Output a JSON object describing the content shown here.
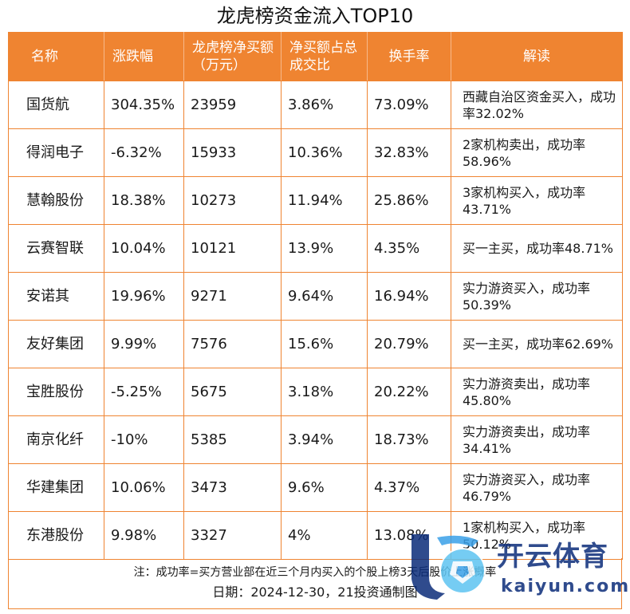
{
  "title": "龙虎榜资金流入TOP10",
  "table": {
    "headers": {
      "name": "名称",
      "change": "涨跌幅",
      "net_buy": "龙虎榜净买额（万元）",
      "share": "净买额占总成交比",
      "turnover": "换手率",
      "note": "解读"
    },
    "rows": [
      {
        "name": "国货航",
        "change": "304.35%",
        "net_buy": "23959",
        "share": "3.86%",
        "turnover": "73.09%",
        "note": "西藏自治区资金买入，成功率32.02%"
      },
      {
        "name": "得润电子",
        "change": "-6.32%",
        "net_buy": "15933",
        "share": "10.36%",
        "turnover": "32.83%",
        "note": "2家机构卖出，成功率58.96%"
      },
      {
        "name": "慧翰股份",
        "change": "18.38%",
        "net_buy": "10273",
        "share": "11.94%",
        "turnover": "25.86%",
        "note": "3家机构买入，成功率43.71%"
      },
      {
        "name": "云赛智联",
        "change": "10.04%",
        "net_buy": "10121",
        "share": "13.9%",
        "turnover": "4.35%",
        "note": "买一主买，成功率48.71%"
      },
      {
        "name": "安诺其",
        "change": "19.96%",
        "net_buy": "9271",
        "share": "9.64%",
        "turnover": "16.94%",
        "note": "实力游资买入，成功率50.39%"
      },
      {
        "name": "友好集团",
        "change": "9.99%",
        "net_buy": "7576",
        "share": "15.6%",
        "turnover": "20.79%",
        "note": "买一主买，成功率62.69%"
      },
      {
        "name": "宝胜股份",
        "change": "-5.25%",
        "net_buy": "5675",
        "share": "3.18%",
        "turnover": "20.22%",
        "note": "实力游资卖出，成功率45.80%"
      },
      {
        "name": "南京化纤",
        "change": "-10%",
        "net_buy": "5385",
        "share": "3.94%",
        "turnover": "18.73%",
        "note": "实力游资卖出，成功率34.41%"
      },
      {
        "name": "华建集团",
        "change": "10.06%",
        "net_buy": "3473",
        "share": "9.6%",
        "turnover": "4.37%",
        "note": "实力游资买入，成功率46.79%"
      },
      {
        "name": "东港股份",
        "change": "9.98%",
        "net_buy": "3327",
        "share": "4%",
        "turnover": "13.08%",
        "note": "1家机构买入，成功率50.12%"
      }
    ]
  },
  "footer": {
    "footnote": "注：成功率=买方营业部在近三个月内买入的个股上榜3天后股价上涨概率",
    "date": "日期：2024-12-30，21投资通制图"
  },
  "watermark": {
    "text": "开云体育",
    "sub": "kaiyun.com",
    "colors": {
      "primary": "#0b2c7a",
      "accent": "#3aa0e8",
      "sphere": "#5ec4f2"
    }
  },
  "colors": {
    "header_bg": "#ef8431",
    "grid": "#ef8431"
  }
}
